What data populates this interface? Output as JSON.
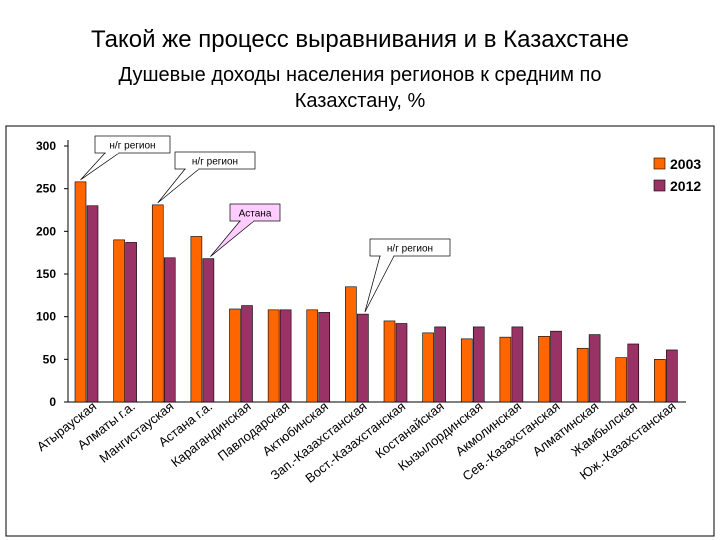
{
  "title": "Такой же процесс выравнивания и в Казахстане",
  "subtitle_line1": "Душевые доходы населения регионов к средним по",
  "subtitle_line2": "Казахстану, %",
  "chart_data": {
    "type": "bar",
    "ylim": [
      0,
      300
    ],
    "yticks": [
      0,
      50,
      100,
      150,
      200,
      250,
      300
    ],
    "grid": false,
    "legend_position": "top-right",
    "categories": [
      "Атырауская",
      "Алматы г.а.",
      "Мангистауская",
      "Астана г.а.",
      "Карагандинская",
      "Павлодарская",
      "Актюбинская",
      "Зап.-Казахстанская",
      "Вост.-Казахстанская",
      "Костанайская",
      "Кызылординская",
      "Акмолинская",
      "Сев.-Казахстанская",
      "Алматинская",
      "Жамбылская",
      "Юж.-Казахстанская"
    ],
    "series": [
      {
        "name": "2003",
        "color": "#ff6600",
        "values": [
          258,
          190,
          231,
          194,
          109,
          108,
          108,
          135,
          95,
          81,
          74,
          76,
          77,
          63,
          52,
          50
        ]
      },
      {
        "name": "2012",
        "color": "#993366",
        "values": [
          230,
          187,
          169,
          168,
          113,
          108,
          105,
          103,
          92,
          88,
          88,
          88,
          83,
          79,
          68,
          61
        ]
      }
    ],
    "annotations": [
      {
        "text": "н/г регион",
        "category_index": 0,
        "color": "#ffffff"
      },
      {
        "text": "н/г регион",
        "category_index": 2,
        "color": "#ffffff"
      },
      {
        "text": "Астана",
        "category_index": 3,
        "color": "#ffccff"
      },
      {
        "text": "н/г регион",
        "category_index": 7,
        "color": "#ffffff"
      }
    ]
  }
}
